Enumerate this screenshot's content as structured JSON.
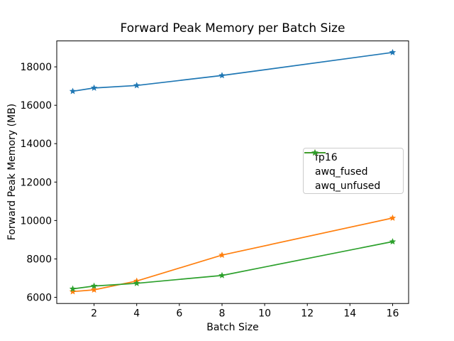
{
  "figure": {
    "background_color": "#ffffff",
    "text_color": "#000000",
    "spine_color": "#000000",
    "legend_border_color": "#cccccc"
  },
  "chart_data": {
    "type": "line",
    "title": "Forward Peak Memory per Batch Size",
    "xlabel": "Batch Size",
    "ylabel": "Forward Peak Memory (MB)",
    "x": [
      1,
      2,
      4,
      8,
      16
    ],
    "series": [
      {
        "name": "fp16",
        "color": "#1f77b4",
        "marker": "star",
        "values": [
          16730,
          16900,
          17030,
          17550,
          18750
        ]
      },
      {
        "name": "awq_fused",
        "color": "#ff7f0e",
        "marker": "star",
        "values": [
          6300,
          6390,
          6850,
          8200,
          10130
        ]
      },
      {
        "name": "awq_unfused",
        "color": "#2ca02c",
        "marker": "star",
        "values": [
          6440,
          6590,
          6730,
          7140,
          8900
        ]
      }
    ],
    "xlim": [
      0.25,
      16.75
    ],
    "ylim": [
      5680,
      19350
    ],
    "xticks": [
      2,
      4,
      6,
      8,
      10,
      12,
      14,
      16
    ],
    "yticks": [
      6000,
      8000,
      10000,
      12000,
      14000,
      16000,
      18000
    ],
    "grid": false,
    "legend_position": "center-right",
    "legend_labels": [
      "fp16",
      "awq_fused",
      "awq_unfused"
    ]
  }
}
